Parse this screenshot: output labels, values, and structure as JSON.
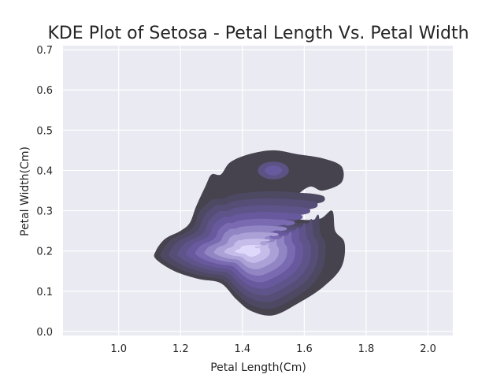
{
  "chart_data": {
    "type": "kde",
    "title": "KDE Plot of Setosa - Petal Length Vs. Petal Width",
    "xlabel": "Petal Length(Cm)",
    "ylabel": "Petal Width(Cm)",
    "xlim": [
      0.82,
      2.08
    ],
    "ylim": [
      -0.01,
      0.71
    ],
    "xticks": [
      "1.0",
      "1.2",
      "1.4",
      "1.6",
      "1.8",
      "2.0"
    ],
    "yticks": [
      "0.0",
      "0.1",
      "0.2",
      "0.3",
      "0.4",
      "0.5",
      "0.6",
      "0.7"
    ],
    "grid": true,
    "fill": true,
    "density_peak": [
      1.42,
      0.2
    ],
    "secondary_peak": [
      1.5,
      0.4
    ],
    "colors": {
      "background": "#eaeaf2",
      "grid": "#ffffff",
      "outer_level": "#46434f",
      "inner_level": "#ded8fb"
    },
    "levels": 10
  }
}
